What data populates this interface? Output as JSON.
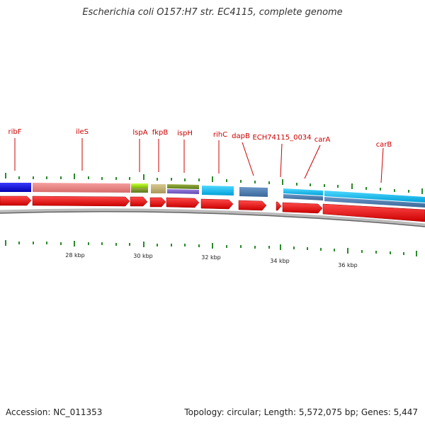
{
  "title": "Escherichia coli O157:H7 str. EC4115, complete genome",
  "footer": {
    "accession": "Accession: NC_011353",
    "topology": "Topology: circular; Length: 5,572,075 bp; Genes: 5,447"
  },
  "colors": {
    "cds": "#ff0000",
    "label": "#cc0000",
    "tick": "#2a8a2a",
    "backbone": "#888888"
  },
  "kbp_labels": [
    "28 kbp",
    "30 kbp",
    "32 kbp",
    "34 kbp",
    "36 kbp"
  ],
  "gene_labels": [
    "ribF",
    "ileS",
    "lspA",
    "fkpB",
    "ispH",
    "rihC",
    "dapB",
    "ECH74115_0034",
    "carA",
    "carB"
  ]
}
